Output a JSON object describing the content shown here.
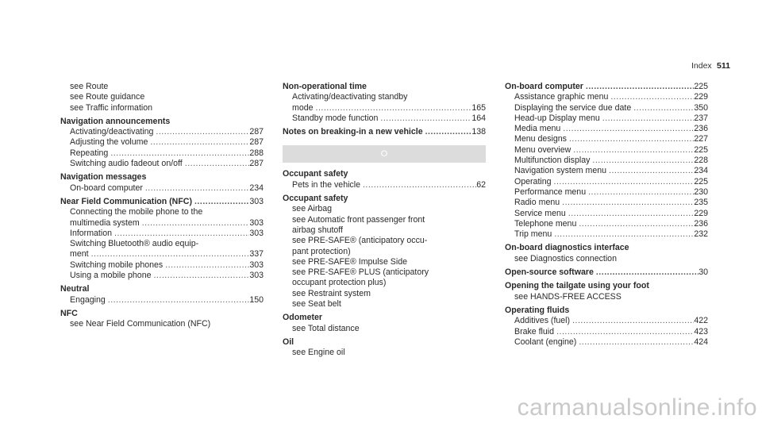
{
  "header": {
    "section": "Index",
    "page": "511"
  },
  "watermark": "carmanualsonline.info",
  "columns": [
    [
      {
        "kind": "sub",
        "text": "see Route"
      },
      {
        "kind": "sub",
        "text": "see Route guidance"
      },
      {
        "kind": "sub",
        "text": "see Traffic information"
      },
      {
        "kind": "head",
        "text": "Navigation announcements"
      },
      {
        "kind": "sub",
        "text": "Activating/deactivating",
        "page": "287"
      },
      {
        "kind": "sub",
        "text": "Adjusting the volume",
        "page": "287"
      },
      {
        "kind": "sub",
        "text": "Repeating",
        "page": "288"
      },
      {
        "kind": "sub",
        "text": "Switching audio fadeout on/off",
        "page": "287"
      },
      {
        "kind": "head",
        "text": "Navigation messages"
      },
      {
        "kind": "sub",
        "text": "On-board computer",
        "page": "234"
      },
      {
        "kind": "head",
        "text": "Near Field Communication (NFC)",
        "page": "303"
      },
      {
        "kind": "sub",
        "text": "Connecting the mobile phone to the"
      },
      {
        "kind": "sub",
        "text": "multimedia system",
        "page": "303"
      },
      {
        "kind": "sub",
        "text": "Information",
        "page": "303"
      },
      {
        "kind": "sub",
        "text": "Switching Bluetooth® audio equip-"
      },
      {
        "kind": "sub",
        "text": "ment",
        "page": "337"
      },
      {
        "kind": "sub",
        "text": "Switching mobile phones",
        "page": "303"
      },
      {
        "kind": "sub",
        "text": "Using a mobile phone",
        "page": "303"
      },
      {
        "kind": "head",
        "text": "Neutral"
      },
      {
        "kind": "sub",
        "text": "Engaging",
        "page": "150"
      },
      {
        "kind": "head",
        "text": "NFC"
      },
      {
        "kind": "sub",
        "text": "see Near Field Communication (NFC)"
      }
    ],
    [
      {
        "kind": "head",
        "text": "Non-operational time"
      },
      {
        "kind": "sub",
        "text": "Activating/deactivating standby"
      },
      {
        "kind": "sub",
        "text": "mode",
        "page": "165"
      },
      {
        "kind": "sub",
        "text": "Standby mode function",
        "page": "164"
      },
      {
        "kind": "head",
        "text": "Notes on breaking-in a new vehicle",
        "page": "138"
      },
      {
        "kind": "letter",
        "text": "O"
      },
      {
        "kind": "head",
        "text": "Occupant safety"
      },
      {
        "kind": "sub",
        "text": "Pets in the vehicle",
        "page": "62"
      },
      {
        "kind": "head",
        "text": "Occupant safety"
      },
      {
        "kind": "sub",
        "text": "see Airbag"
      },
      {
        "kind": "sub",
        "text": "see Automatic front passenger front"
      },
      {
        "kind": "sub",
        "text": "airbag shutoff"
      },
      {
        "kind": "sub",
        "text": "see PRE-SAFE® (anticipatory occu-"
      },
      {
        "kind": "sub",
        "text": "pant protection)"
      },
      {
        "kind": "sub",
        "text": "see PRE-SAFE® Impulse Side"
      },
      {
        "kind": "sub",
        "text": "see PRE-SAFE® PLUS (anticipatory"
      },
      {
        "kind": "sub",
        "text": "occupant protection plus)"
      },
      {
        "kind": "sub",
        "text": "see Restraint system"
      },
      {
        "kind": "sub",
        "text": "see Seat belt"
      },
      {
        "kind": "head",
        "text": "Odometer"
      },
      {
        "kind": "sub",
        "text": "see Total distance"
      },
      {
        "kind": "head",
        "text": "Oil"
      },
      {
        "kind": "sub",
        "text": "see Engine oil"
      }
    ],
    [
      {
        "kind": "head",
        "text": "On-board computer",
        "page": "225"
      },
      {
        "kind": "sub",
        "text": "Assistance graphic menu",
        "page": "229"
      },
      {
        "kind": "sub",
        "text": "Displaying the service due date",
        "page": "350"
      },
      {
        "kind": "sub",
        "text": "Head-up Display menu",
        "page": "237"
      },
      {
        "kind": "sub",
        "text": "Media menu",
        "page": "236"
      },
      {
        "kind": "sub",
        "text": "Menu designs",
        "page": "227"
      },
      {
        "kind": "sub",
        "text": "Menu overview",
        "page": "225"
      },
      {
        "kind": "sub",
        "text": "Multifunction display",
        "page": "228"
      },
      {
        "kind": "sub",
        "text": "Navigation system menu",
        "page": "234"
      },
      {
        "kind": "sub",
        "text": "Operating",
        "page": "225"
      },
      {
        "kind": "sub",
        "text": "Performance menu",
        "page": "230"
      },
      {
        "kind": "sub",
        "text": "Radio menu",
        "page": "235"
      },
      {
        "kind": "sub",
        "text": "Service menu",
        "page": "229"
      },
      {
        "kind": "sub",
        "text": "Telephone menu",
        "page": "236"
      },
      {
        "kind": "sub",
        "text": "Trip menu",
        "page": "232"
      },
      {
        "kind": "head",
        "text": "On-board diagnostics interface"
      },
      {
        "kind": "sub",
        "text": "see Diagnostics connection"
      },
      {
        "kind": "head",
        "text": "Open-source software",
        "page": "30"
      },
      {
        "kind": "head",
        "text": "Opening the tailgate using your foot"
      },
      {
        "kind": "sub",
        "text": "see HANDS-FREE ACCESS"
      },
      {
        "kind": "head",
        "text": "Operating fluids"
      },
      {
        "kind": "sub",
        "text": "Additives (fuel)",
        "page": "422"
      },
      {
        "kind": "sub",
        "text": "Brake fluid",
        "page": "423"
      },
      {
        "kind": "sub",
        "text": "Coolant (engine)",
        "page": "424"
      }
    ]
  ]
}
